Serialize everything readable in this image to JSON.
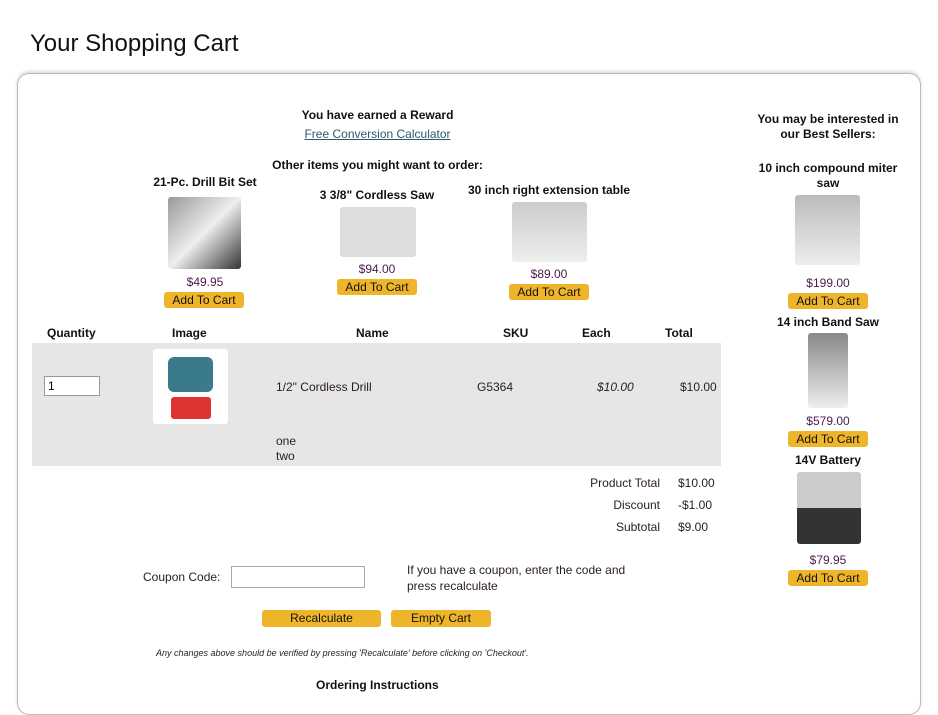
{
  "page_title": "Your Shopping Cart",
  "reward": {
    "text": "You have earned a Reward",
    "link": "Free Conversion Calculator"
  },
  "upsell": {
    "heading": "Other items you might want to order:",
    "items": [
      {
        "name": "21-Pc. Drill Bit Set",
        "price": "$49.95",
        "button": "Add To Cart"
      },
      {
        "name": "3 3/8\" Cordless Saw",
        "price": "$94.00",
        "button": "Add To Cart"
      },
      {
        "name": "30 inch right extension table",
        "price": "$89.00",
        "button": "Add To Cart"
      }
    ]
  },
  "table": {
    "headers": [
      "Quantity",
      "Image",
      "Name",
      "SKU",
      "Each",
      "Total"
    ],
    "row": {
      "quantity": "1",
      "name": "1/2\" Cordless Drill",
      "sku": "G5364",
      "each": "$10.00",
      "total": "$10.00",
      "options": [
        "one",
        "two"
      ]
    }
  },
  "totals": [
    {
      "label": "Product Total",
      "value": "$10.00"
    },
    {
      "label": "Discount",
      "value": "-$1.00"
    },
    {
      "label": "Subtotal",
      "value": "$9.00"
    }
  ],
  "coupon": {
    "label": "Coupon Code:",
    "value": "",
    "hint": "If you have a coupon, enter the code and press recalculate"
  },
  "buttons": {
    "recalculate": "Recalculate",
    "empty": "Empty Cart"
  },
  "note": "Any changes above should be verified by pressing 'Recalculate' before clicking on 'Checkout'.",
  "ordering_instructions": "Ordering Instructions",
  "sidebar": {
    "heading": "You may be interested in our Best Sellers:",
    "items": [
      {
        "name": "10 inch compound miter saw",
        "price": "$199.00",
        "button": "Add To Cart"
      },
      {
        "name": "14 inch Band Saw",
        "price": "$579.00",
        "button": "Add To Cart"
      },
      {
        "name": "14V Battery",
        "price": "$79.95",
        "button": "Add To Cart"
      }
    ]
  }
}
